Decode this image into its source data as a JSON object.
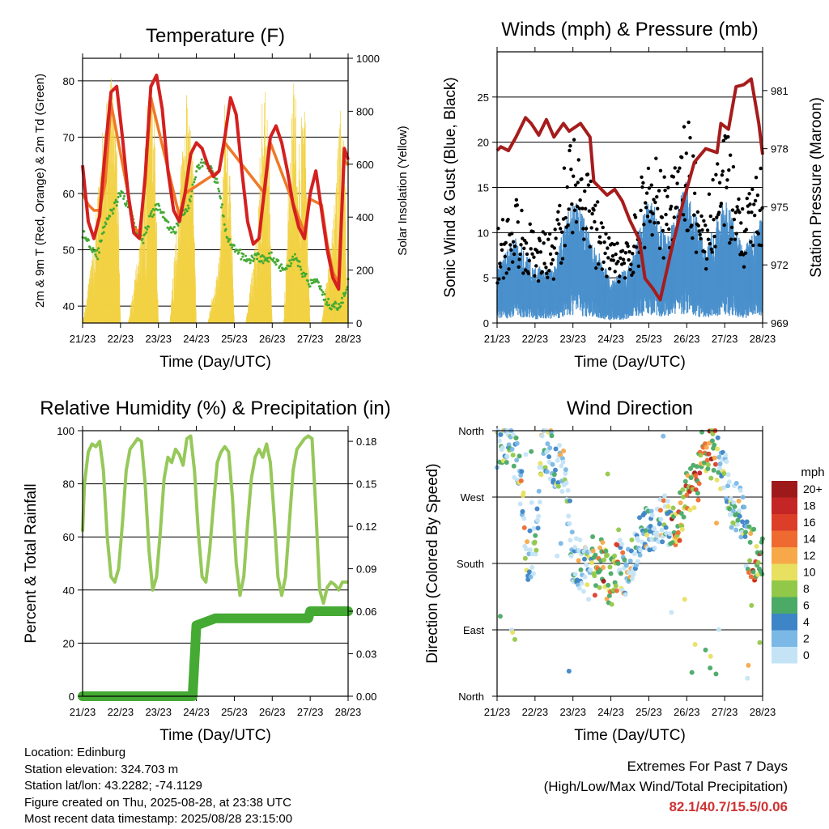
{
  "x_ticks": [
    "21/23",
    "22/23",
    "23/23",
    "24/23",
    "25/23",
    "26/23",
    "27/23",
    "28/23"
  ],
  "x_label": "Time (Day/UTC)",
  "colors": {
    "temp_2m": "#d42020",
    "temp_9m": "#f07828",
    "dewpoint": "#44aa33",
    "solar": "#f2d244",
    "gust": "#000000",
    "wind": "#4a90cc",
    "pressure": "#a61c1c",
    "rh": "#96c85a",
    "precip": "#44aa33"
  },
  "chart_data": [
    {
      "type": "line",
      "title": "Temperature (F)",
      "xlabel": "Time (Day/UTC)",
      "ylabel": "2m & 9m T (Red, Orange) & 2m Td (Green)",
      "ylabel_right": "Solar Insolation (Yellow)",
      "ylim": [
        37,
        84
      ],
      "y_ticks": [
        40,
        50,
        60,
        70,
        80
      ],
      "ylim_right": [
        0,
        1000
      ],
      "y_ticks_right": [
        0,
        200,
        400,
        600,
        800,
        1000
      ],
      "grid": "horizontal",
      "series": [
        {
          "x": [
            0,
            0.15,
            0.3,
            0.45,
            0.6,
            0.75,
            0.9,
            1.05,
            1.2,
            1.35,
            1.5,
            1.65,
            1.8,
            1.95,
            2.1,
            2.25,
            2.4,
            2.55,
            2.7,
            2.85,
            3.0,
            3.15,
            3.3,
            3.45,
            3.6,
            3.75,
            3.9,
            4.05,
            4.2,
            4.35,
            4.5,
            4.65,
            4.8,
            4.95,
            5.1,
            5.25,
            5.4,
            5.55,
            5.7,
            5.85,
            6.0,
            6.15,
            6.3,
            6.45,
            6.6,
            6.75,
            6.9,
            7.0
          ],
          "values": [
            65,
            55,
            52,
            56,
            68,
            78,
            79,
            70,
            60,
            53,
            52,
            63,
            79,
            81,
            75,
            64,
            57,
            55,
            60,
            67,
            69,
            68,
            65,
            63,
            64,
            70,
            77,
            74,
            64,
            55,
            51,
            52,
            61,
            70,
            72,
            69,
            64,
            58,
            54,
            52,
            60,
            64,
            57,
            50,
            45,
            43,
            68,
            66
          ]
        },
        {
          "x": [
            0,
            0.15,
            0.3,
            0.45,
            0.6,
            0.75,
            1.2,
            1.35,
            1.5,
            1.65,
            1.8,
            2.55,
            2.7,
            3.6,
            3.75,
            4.8,
            4.95,
            5.85,
            6.0,
            6.3,
            6.45,
            6.6,
            6.75,
            6.9,
            7.0
          ],
          "values": [
            60,
            58,
            57,
            57,
            62,
            76,
            60,
            54,
            53,
            62,
            77,
            56,
            60,
            64,
            69,
            60,
            69,
            53,
            59,
            58,
            51,
            46,
            44,
            66,
            65
          ]
        },
        {
          "x": [
            0,
            0.2,
            0.4,
            0.6,
            0.8,
            1.0,
            1.2,
            1.4,
            1.6,
            1.8,
            2.0,
            2.2,
            2.4,
            2.6,
            2.8,
            3.0,
            3.2,
            3.4,
            3.6,
            3.8,
            4.0,
            4.2,
            4.4,
            4.6,
            4.8,
            5.0,
            5.2,
            5.4,
            5.6,
            5.8,
            6.0,
            6.2,
            6.4,
            6.6,
            6.8,
            7.0
          ],
          "values": [
            53,
            51,
            49,
            55,
            57,
            60,
            58,
            54,
            52,
            56,
            58,
            55,
            53,
            56,
            58,
            64,
            66,
            64,
            61,
            52,
            50,
            49,
            48,
            49,
            48,
            49,
            47,
            47,
            49,
            46,
            44,
            45,
            41,
            40,
            40,
            44
          ]
        },
        {
          "x": [
            0,
            0.3,
            0.6,
            0.75,
            0.9,
            1.0,
            1.2,
            1.5,
            1.75,
            1.9,
            2.0,
            2.3,
            2.6,
            2.75,
            2.9,
            3.0,
            3.3,
            3.6,
            3.75,
            3.9,
            4.0,
            4.3,
            4.6,
            4.75,
            4.9,
            5.0,
            5.3,
            5.55,
            5.7,
            5.85,
            6.0,
            6.3,
            6.6,
            6.8,
            6.9,
            7.0
          ],
          "values": [
            0,
            300,
            880,
            930,
            780,
            0,
            0,
            300,
            950,
            820,
            0,
            0,
            650,
            890,
            700,
            0,
            0,
            250,
            930,
            600,
            0,
            0,
            350,
            950,
            800,
            0,
            0,
            980,
            700,
            900,
            0,
            0,
            400,
            820,
            700,
            0
          ]
        }
      ]
    },
    {
      "type": "scatter",
      "title": "Winds (mph) & Pressure (mb)",
      "xlabel": "Time (Day/UTC)",
      "ylabel": "Sonic Wind & Gust (Blue, Black)",
      "ylabel_right": "Station Pressure (Maroon)",
      "ylim": [
        0,
        30
      ],
      "y_ticks": [
        0,
        5,
        10,
        15,
        20,
        25
      ],
      "ylim_right": [
        969,
        983
      ],
      "y_ticks_right": [
        969,
        972,
        975,
        978,
        981
      ],
      "grid": "horizontal",
      "series": [
        {
          "x": [
            0,
            0.5,
            1.0,
            1.5,
            2.0,
            2.5,
            3.0,
            3.5,
            4.0,
            4.5,
            5.0,
            5.5,
            6.0,
            6.5,
            7.0
          ],
          "values": [
            8,
            11,
            8,
            8,
            18,
            12,
            7,
            7,
            16,
            12,
            18,
            10,
            17,
            11,
            15
          ]
        },
        {
          "x": [
            0,
            0.5,
            1.0,
            1.5,
            2.0,
            2.5,
            3.0,
            3.5,
            4.0,
            4.5,
            5.0,
            5.5,
            6.0,
            6.5,
            7.0
          ],
          "values": [
            4,
            6,
            4,
            4,
            9,
            6,
            3,
            4,
            9,
            6,
            10,
            5,
            9,
            5,
            8
          ]
        },
        {
          "x": [
            0,
            0.1,
            0.3,
            0.5,
            0.75,
            0.9,
            1.1,
            1.3,
            1.5,
            1.75,
            1.9,
            2.2,
            2.45,
            2.55,
            2.9,
            3.1,
            3.3,
            3.5,
            3.75,
            3.9,
            4.1,
            4.3,
            4.6,
            4.9,
            5.2,
            5.5,
            5.8,
            5.9,
            6.1,
            6.3,
            6.5,
            6.7,
            6.9,
            7.0
          ],
          "values": [
            977.9,
            978.1,
            977.9,
            978.6,
            979.6,
            979.3,
            978.7,
            979.5,
            978.6,
            979.3,
            978.9,
            979.3,
            978.6,
            976.3,
            975.6,
            975.9,
            975.3,
            974.3,
            973.3,
            971.3,
            970.8,
            970.2,
            972.8,
            975.2,
            977.3,
            978.0,
            977.8,
            979.3,
            979.0,
            981.2,
            981.3,
            981.6,
            979.3,
            977.7
          ]
        }
      ]
    },
    {
      "type": "line",
      "title": "Relative Humidity (%) & Precipitation (in)",
      "xlabel": "Time (Day/UTC)",
      "ylabel": "Percent & Total Rainfall",
      "ylim": [
        0,
        100
      ],
      "y_ticks": [
        0,
        20,
        40,
        60,
        80,
        100
      ],
      "ylim_right": [
        0,
        0.1875
      ],
      "y_ticks_right": [
        0.0,
        0.03,
        0.06,
        0.09,
        0.12,
        0.15,
        0.18
      ],
      "grid": "horizontal",
      "series": [
        {
          "x": [
            0,
            0.05,
            0.15,
            0.25,
            0.35,
            0.45,
            0.55,
            0.65,
            0.75,
            0.85,
            0.95,
            1.05,
            1.15,
            1.25,
            1.35,
            1.45,
            1.55,
            1.65,
            1.75,
            1.85,
            1.95,
            2.05,
            2.15,
            2.25,
            2.35,
            2.45,
            2.55,
            2.65,
            2.75,
            2.85,
            2.95,
            3.05,
            3.15,
            3.25,
            3.35,
            3.45,
            3.55,
            3.65,
            3.75,
            3.85,
            3.95,
            4.05,
            4.15,
            4.25,
            4.35,
            4.45,
            4.55,
            4.65,
            4.75,
            4.85,
            4.95,
            5.05,
            5.15,
            5.25,
            5.35,
            5.45,
            5.55,
            5.65,
            5.75,
            5.85,
            5.95,
            6.05,
            6.15,
            6.25,
            6.35,
            6.45,
            6.55,
            6.65,
            6.75,
            6.85,
            6.95,
            7.0
          ],
          "values": [
            62,
            80,
            92,
            95,
            94,
            96,
            85,
            60,
            45,
            43,
            48,
            65,
            85,
            93,
            95,
            97,
            96,
            80,
            55,
            40,
            45,
            62,
            82,
            90,
            88,
            93,
            91,
            87,
            97,
            98,
            85,
            62,
            45,
            43,
            55,
            72,
            88,
            92,
            94,
            92,
            75,
            50,
            38,
            45,
            65,
            82,
            90,
            93,
            90,
            95,
            88,
            68,
            45,
            38,
            45,
            65,
            85,
            93,
            95,
            97,
            98,
            97,
            70,
            40,
            35,
            41,
            43,
            42,
            40,
            43,
            43,
            43
          ]
        },
        {
          "x": [
            0,
            0.5,
            1.0,
            1.5,
            2.0,
            2.5,
            2.9,
            3.0,
            3.5,
            4.0,
            4.5,
            5.0,
            5.5,
            5.95,
            6.0,
            6.5,
            7.0
          ],
          "values": [
            0,
            0,
            0,
            0,
            0,
            0,
            0,
            0.05,
            0.055,
            0.055,
            0.055,
            0.055,
            0.055,
            0.055,
            0.06,
            0.06,
            0.06
          ]
        }
      ]
    },
    {
      "type": "scatter",
      "title": "Wind Direction",
      "xlabel": "Time (Day/UTC)",
      "ylabel": "Direction (Colored By Speed)",
      "y_categories": [
        "North",
        "East",
        "South",
        "West",
        "North"
      ],
      "ylim": [
        0,
        360
      ],
      "color_legend": {
        "unit": "mph",
        "labels": [
          "20+",
          "18",
          "16",
          "14",
          "12",
          "10",
          "8",
          "6",
          "4",
          "2",
          "0"
        ],
        "colors": [
          "#9e1a1a",
          "#c42525",
          "#dd3e2a",
          "#ee6a30",
          "#f7a94a",
          "#e8e060",
          "#92c84a",
          "#4aaa66",
          "#3d85c6",
          "#7bb8e5",
          "#c4e4f6"
        ]
      },
      "series": [
        {
          "x": [
            0,
            0.2,
            0.4,
            0.6,
            0.8,
            1.0,
            1.2,
            1.4,
            1.6,
            1.8,
            2.0,
            2.2,
            2.4,
            2.6,
            2.8,
            3.0,
            3.2,
            3.4,
            3.6,
            3.8,
            4.0,
            4.2,
            4.4,
            4.6,
            4.8,
            5.0,
            5.2,
            5.4,
            5.6,
            5.8,
            6.0,
            6.2,
            6.4,
            6.6,
            6.8,
            7.0
          ],
          "values": [
            345,
            350,
            340,
            300,
            190,
            200,
            340,
            330,
            310,
            300,
            185,
            180,
            160,
            170,
            180,
            150,
            180,
            165,
            195,
            215,
            225,
            230,
            240,
            235,
            240,
            270,
            280,
            320,
            330,
            325,
            300,
            250,
            260,
            200,
            190,
            180
          ]
        }
      ]
    }
  ],
  "info": {
    "location": "Location: Edinburg",
    "elevation": "Station elevation: 324.703 m",
    "latlon": "Station lat/lon: 43.2282; -74.1129",
    "created": "Figure created on Thu, 2025-08-28, at 23:38 UTC",
    "recent": "Most recent data timestamp: 2025/08/28 23:15:00"
  },
  "extremes": {
    "line1": "Extremes For Past 7 Days",
    "line2": "(High/Low/Max Wind/Total Precipitation)",
    "values": "82.1/40.7/15.5/0.06"
  }
}
